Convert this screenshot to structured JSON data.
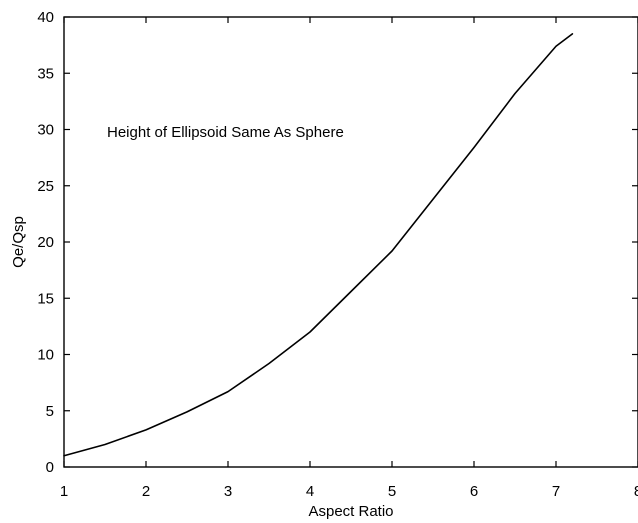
{
  "chart_data": {
    "type": "line",
    "title": "",
    "xlabel": "Aspect Ratio",
    "ylabel": "Qe/Qsp",
    "xlim": [
      1,
      8
    ],
    "ylim": [
      0,
      40
    ],
    "x_ticks": [
      "1",
      "2",
      "3",
      "4",
      "5",
      "6",
      "7",
      "8"
    ],
    "y_ticks": [
      "0",
      "5",
      "10",
      "15",
      "20",
      "25",
      "30",
      "35",
      "40"
    ],
    "grid": false,
    "annotation": "Height of Ellipsoid Same As Sphere",
    "series": [
      {
        "x": [
          1,
          1.5,
          2,
          2.5,
          3,
          3.5,
          4,
          4.5,
          5,
          5.5,
          6,
          6.5,
          7,
          7.2
        ],
        "y": [
          1,
          2,
          3.3,
          4.9,
          6.7,
          9.2,
          12,
          15.6,
          19.2,
          23.8,
          28.4,
          33.2,
          37.4,
          38.5
        ],
        "color": "#000000"
      }
    ]
  }
}
